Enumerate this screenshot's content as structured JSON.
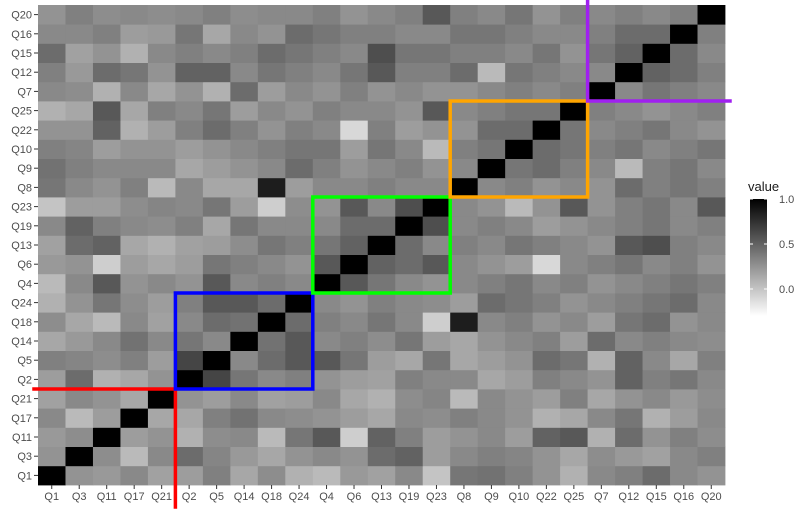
{
  "chart_data": {
    "type": "heatmap",
    "variables": [
      "Q1",
      "Q3",
      "Q11",
      "Q17",
      "Q21",
      "Q2",
      "Q5",
      "Q14",
      "Q18",
      "Q24",
      "Q4",
      "Q6",
      "Q13",
      "Q19",
      "Q23",
      "Q8",
      "Q9",
      "Q10",
      "Q22",
      "Q25",
      "Q7",
      "Q12",
      "Q15",
      "Q16",
      "Q20"
    ],
    "values_matrix_note": "",
    "legend": {
      "title": "value",
      "ticks": [
        1.0,
        0.5,
        0.0
      ],
      "tick_labels": [
        "1.0",
        "0.5",
        "0.0"
      ],
      "range": [
        -0.3,
        1.0
      ]
    },
    "colormap": {
      "low": "#ffffff",
      "high": "#000000"
    },
    "panel_background": "#ebebeb",
    "clusters": [
      {
        "members": [
          "Q1",
          "Q3",
          "Q11",
          "Q17",
          "Q21"
        ],
        "color": "#ff0000"
      },
      {
        "members": [
          "Q2",
          "Q5",
          "Q14",
          "Q18",
          "Q24"
        ],
        "color": "#0000ff"
      },
      {
        "members": [
          "Q4",
          "Q6",
          "Q13",
          "Q19",
          "Q23"
        ],
        "color": "#00ff00"
      },
      {
        "members": [
          "Q8",
          "Q9",
          "Q10",
          "Q22",
          "Q25"
        ],
        "color": "#ffa500"
      },
      {
        "members": [
          "Q7",
          "Q12",
          "Q15",
          "Q16",
          "Q20"
        ],
        "color": "#a020f0"
      }
    ],
    "values": [
      [
        1.0,
        0.25,
        0.22,
        0.3,
        0.18,
        0.2,
        0.35,
        0.15,
        0.28,
        0.1,
        0.05,
        0.22,
        0.18,
        0.3,
        0.0,
        0.4,
        0.42,
        0.35,
        0.25,
        0.1,
        0.3,
        0.35,
        0.45,
        0.3,
        0.25
      ],
      [
        0.25,
        1.0,
        0.28,
        0.05,
        0.3,
        0.45,
        0.32,
        0.22,
        0.15,
        0.25,
        0.3,
        0.25,
        0.45,
        0.5,
        0.2,
        0.3,
        0.35,
        0.32,
        0.25,
        0.15,
        0.28,
        0.22,
        0.18,
        0.3,
        0.35
      ],
      [
        0.22,
        0.28,
        1.0,
        0.2,
        0.25,
        0.1,
        0.28,
        0.3,
        0.05,
        0.4,
        0.55,
        -0.05,
        0.5,
        0.35,
        0.2,
        0.25,
        0.3,
        0.2,
        0.5,
        0.55,
        0.1,
        0.45,
        0.25,
        0.35,
        0.28
      ],
      [
        0.3,
        0.05,
        0.2,
        1.0,
        0.15,
        0.15,
        0.35,
        0.42,
        0.3,
        0.28,
        0.25,
        0.2,
        0.15,
        0.3,
        0.28,
        0.35,
        0.3,
        0.25,
        0.1,
        0.15,
        0.3,
        0.4,
        0.1,
        0.2,
        0.3
      ],
      [
        0.18,
        0.3,
        0.25,
        0.15,
        1.0,
        0.25,
        0.2,
        0.3,
        0.18,
        0.2,
        0.3,
        0.15,
        0.1,
        0.28,
        0.32,
        0.05,
        0.3,
        0.25,
        0.2,
        0.35,
        0.15,
        0.25,
        0.3,
        0.22,
        0.28
      ],
      [
        0.2,
        0.45,
        0.1,
        0.15,
        0.25,
        1.0,
        0.65,
        0.4,
        0.3,
        0.35,
        0.25,
        0.2,
        0.18,
        0.35,
        0.3,
        0.3,
        0.15,
        0.2,
        0.35,
        0.3,
        0.25,
        0.5,
        0.35,
        0.4,
        0.3
      ],
      [
        0.35,
        0.32,
        0.28,
        0.35,
        0.2,
        0.65,
        1.0,
        0.3,
        0.45,
        0.55,
        0.55,
        0.4,
        0.2,
        0.15,
        0.4,
        0.15,
        0.2,
        0.25,
        0.45,
        0.4,
        0.1,
        0.5,
        0.3,
        0.15,
        0.35
      ],
      [
        0.15,
        0.22,
        0.3,
        0.42,
        0.3,
        0.4,
        0.3,
        1.0,
        0.42,
        0.55,
        0.3,
        0.35,
        0.28,
        0.4,
        0.2,
        0.15,
        0.25,
        0.3,
        0.35,
        0.2,
        0.45,
        0.3,
        0.35,
        0.3,
        0.28
      ],
      [
        0.28,
        0.15,
        0.05,
        0.3,
        0.18,
        0.3,
        0.45,
        0.42,
        1.0,
        0.45,
        0.35,
        0.3,
        0.4,
        0.3,
        -0.05,
        0.85,
        0.3,
        0.35,
        0.25,
        0.3,
        0.2,
        0.4,
        0.45,
        0.25,
        0.3
      ],
      [
        0.1,
        0.25,
        0.4,
        0.28,
        0.2,
        0.35,
        0.55,
        0.55,
        0.45,
        1.0,
        0.3,
        0.25,
        0.35,
        0.3,
        0.28,
        0.2,
        0.45,
        0.4,
        0.35,
        0.25,
        0.3,
        0.35,
        0.4,
        0.45,
        0.3
      ],
      [
        0.05,
        0.3,
        0.55,
        0.25,
        0.3,
        0.25,
        0.55,
        0.3,
        0.35,
        0.3,
        1.0,
        0.55,
        0.4,
        0.3,
        0.25,
        0.3,
        0.35,
        0.4,
        0.3,
        0.35,
        0.25,
        0.3,
        0.35,
        0.4,
        0.35
      ],
      [
        0.22,
        0.25,
        -0.05,
        0.2,
        0.15,
        0.2,
        0.4,
        0.35,
        0.3,
        0.25,
        0.55,
        1.0,
        0.5,
        0.45,
        0.55,
        0.3,
        0.25,
        0.2,
        -0.1,
        0.3,
        0.35,
        0.4,
        0.3,
        0.35,
        0.25
      ],
      [
        0.18,
        0.45,
        0.5,
        0.15,
        0.1,
        0.18,
        0.2,
        0.28,
        0.4,
        0.35,
        0.4,
        0.5,
        1.0,
        0.45,
        0.3,
        0.35,
        0.3,
        0.4,
        0.35,
        0.3,
        0.25,
        0.55,
        0.6,
        0.35,
        0.3
      ],
      [
        0.3,
        0.5,
        0.35,
        0.3,
        0.28,
        0.35,
        0.15,
        0.4,
        0.3,
        0.3,
        0.3,
        0.45,
        0.45,
        1.0,
        0.6,
        0.3,
        0.35,
        0.3,
        0.2,
        0.25,
        0.3,
        0.35,
        0.4,
        0.3,
        0.35
      ],
      [
        0.0,
        0.2,
        0.2,
        0.28,
        0.32,
        0.3,
        0.4,
        0.2,
        -0.05,
        0.28,
        0.25,
        0.55,
        0.3,
        0.6,
        1.0,
        0.3,
        0.25,
        0.05,
        0.25,
        0.55,
        0.25,
        0.35,
        0.4,
        0.3,
        0.55
      ],
      [
        0.4,
        0.3,
        0.25,
        0.35,
        0.05,
        0.3,
        0.15,
        0.15,
        0.85,
        0.2,
        0.3,
        0.3,
        0.35,
        0.3,
        0.3,
        1.0,
        0.3,
        0.35,
        0.25,
        0.3,
        0.25,
        0.45,
        0.35,
        0.4,
        0.35
      ],
      [
        0.42,
        0.35,
        0.3,
        0.3,
        0.3,
        0.15,
        0.2,
        0.25,
        0.3,
        0.45,
        0.35,
        0.25,
        0.3,
        0.35,
        0.25,
        0.3,
        1.0,
        0.4,
        0.45,
        0.35,
        0.3,
        0.05,
        0.35,
        0.4,
        0.3
      ],
      [
        0.35,
        0.32,
        0.2,
        0.25,
        0.25,
        0.2,
        0.25,
        0.3,
        0.35,
        0.4,
        0.4,
        0.2,
        0.4,
        0.3,
        0.05,
        0.35,
        0.4,
        1.0,
        0.45,
        0.4,
        0.35,
        0.4,
        0.3,
        0.35,
        0.4
      ],
      [
        0.25,
        0.25,
        0.5,
        0.1,
        0.2,
        0.35,
        0.45,
        0.35,
        0.25,
        0.35,
        0.3,
        -0.1,
        0.35,
        0.2,
        0.25,
        0.25,
        0.45,
        0.45,
        1.0,
        0.4,
        0.3,
        0.35,
        0.4,
        0.3,
        0.25
      ],
      [
        0.1,
        0.15,
        0.55,
        0.15,
        0.35,
        0.3,
        0.4,
        0.2,
        0.3,
        0.25,
        0.35,
        0.3,
        0.3,
        0.25,
        0.55,
        0.3,
        0.35,
        0.4,
        0.4,
        1.0,
        0.35,
        0.3,
        0.25,
        0.3,
        0.35
      ],
      [
        0.3,
        0.28,
        0.1,
        0.3,
        0.15,
        0.25,
        0.1,
        0.45,
        0.2,
        0.3,
        0.25,
        0.35,
        0.25,
        0.3,
        0.25,
        0.25,
        0.3,
        0.35,
        0.3,
        0.35,
        1.0,
        0.3,
        0.4,
        0.35,
        0.3
      ],
      [
        0.35,
        0.22,
        0.45,
        0.4,
        0.25,
        0.5,
        0.5,
        0.3,
        0.4,
        0.35,
        0.3,
        0.4,
        0.55,
        0.35,
        0.35,
        0.45,
        0.05,
        0.4,
        0.35,
        0.3,
        0.3,
        1.0,
        0.5,
        0.45,
        0.35
      ],
      [
        0.45,
        0.18,
        0.25,
        0.1,
        0.3,
        0.35,
        0.3,
        0.35,
        0.45,
        0.4,
        0.35,
        0.3,
        0.6,
        0.4,
        0.4,
        0.35,
        0.35,
        0.3,
        0.4,
        0.25,
        0.4,
        0.5,
        1.0,
        0.45,
        0.3
      ],
      [
        0.3,
        0.3,
        0.35,
        0.2,
        0.22,
        0.4,
        0.15,
        0.3,
        0.25,
        0.45,
        0.4,
        0.35,
        0.35,
        0.3,
        0.3,
        0.4,
        0.4,
        0.35,
        0.3,
        0.3,
        0.35,
        0.45,
        0.45,
        1.0,
        0.35
      ],
      [
        0.25,
        0.35,
        0.28,
        0.3,
        0.28,
        0.3,
        0.35,
        0.28,
        0.3,
        0.3,
        0.35,
        0.25,
        0.3,
        0.35,
        0.55,
        0.35,
        0.3,
        0.4,
        0.25,
        0.35,
        0.3,
        0.35,
        0.3,
        0.35,
        1.0
      ]
    ]
  }
}
